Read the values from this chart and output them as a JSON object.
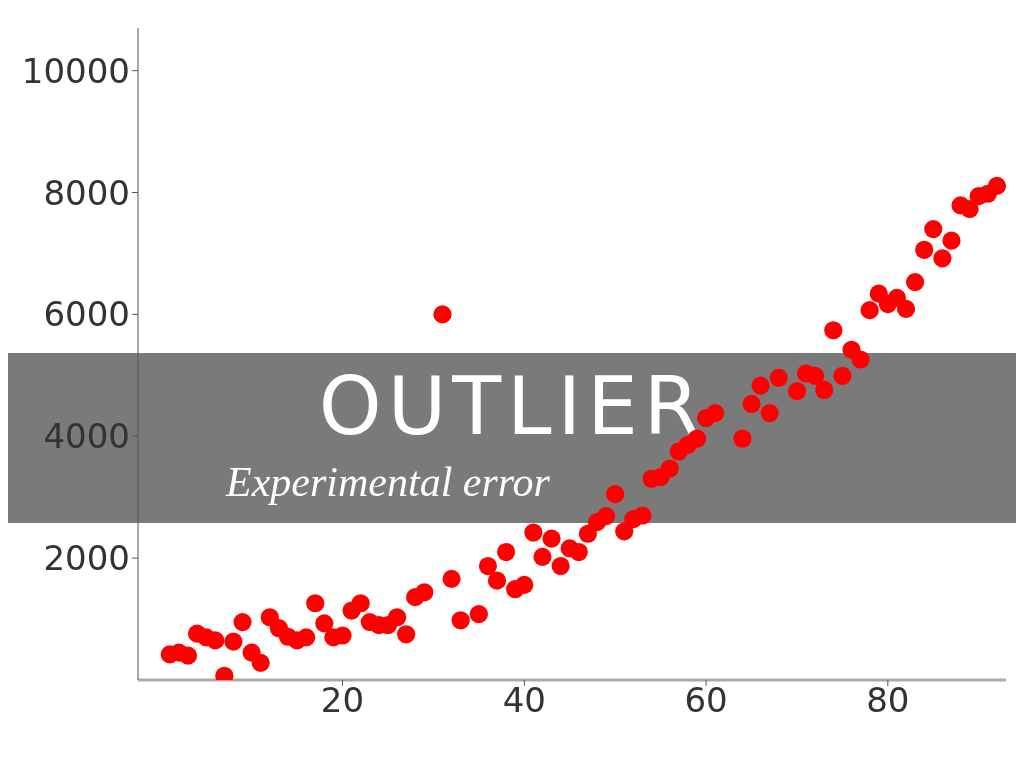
{
  "chart_data": {
    "type": "scatter",
    "title": "OUTLIER",
    "subtitle": "Experimental error",
    "x": [
      1,
      2,
      3,
      4,
      5,
      6,
      7,
      8,
      9,
      10,
      11,
      12,
      13,
      14,
      15,
      16,
      17,
      18,
      19,
      20,
      21,
      22,
      23,
      24,
      25,
      26,
      27,
      28,
      29,
      31,
      32,
      33,
      35,
      36,
      37,
      38,
      39,
      40,
      41,
      42,
      43,
      44,
      45,
      46,
      47,
      48,
      49,
      50,
      51,
      52,
      53,
      54,
      55,
      56,
      57,
      58,
      59,
      60,
      61,
      64,
      65,
      66,
      67,
      68,
      70,
      71,
      72,
      73,
      74,
      75,
      76,
      77,
      78,
      79,
      80,
      81,
      82,
      83,
      84,
      85,
      86,
      87,
      88,
      89,
      90,
      91,
      92
    ],
    "values": [
      420,
      450,
      400,
      760,
      700,
      650,
      70,
      630,
      950,
      450,
      280,
      1030,
      850,
      710,
      650,
      700,
      1260,
      930,
      700,
      730,
      1140,
      1260,
      950,
      900,
      900,
      1030,
      750,
      1360,
      1440,
      6000,
      1660,
      980,
      1080,
      1870,
      1630,
      2100,
      1490,
      1560,
      2420,
      2020,
      2320,
      1870,
      2160,
      2100,
      2400,
      2590,
      2690,
      3050,
      2440,
      2640,
      2700,
      3300,
      3330,
      3470,
      3750,
      3860,
      3960,
      4300,
      4380,
      3960,
      4530,
      4830,
      4380,
      4960,
      4740,
      5030,
      4990,
      4760,
      5740,
      4990,
      5420,
      5260,
      6070,
      6340,
      6170,
      6270,
      6090,
      6530,
      7060,
      7400,
      6920,
      7210,
      7790,
      7730,
      7940,
      7980,
      8110
    ],
    "color": "#ff0000",
    "marker": "circle",
    "xlim": [
      -2.5,
      93
    ],
    "xticks": [
      20,
      40,
      60,
      80
    ],
    "ylim": [
      0,
      10700
    ],
    "yticks": [
      2000,
      4000,
      6000,
      8000,
      10000
    ]
  }
}
